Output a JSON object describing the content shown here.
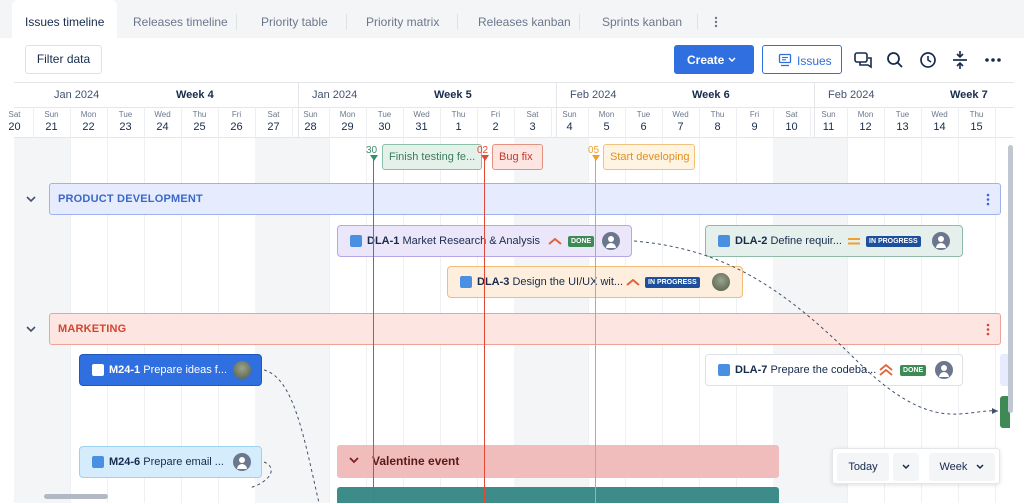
{
  "tabs": [
    {
      "label": "Issues timeline",
      "active": true
    },
    {
      "label": "Releases timeline",
      "active": false
    },
    {
      "label": "Priority table",
      "active": false
    },
    {
      "label": "Priority matrix",
      "active": false
    },
    {
      "label": "Releases kanban",
      "active": false
    },
    {
      "label": "Sprints kanban",
      "active": false
    }
  ],
  "toolbar": {
    "filter_label": "Filter data",
    "create_label": "Create",
    "issues_label": "Issues"
  },
  "header": {
    "months": [
      "Jan 2024",
      "Jan 2024",
      "Feb 2024",
      "Feb 2024"
    ],
    "weeks": [
      "Week 4",
      "Week 5",
      "Week 6",
      "Week 7"
    ],
    "days": [
      {
        "n": "Sat",
        "d": "20"
      },
      {
        "n": "Sun",
        "d": "21"
      },
      {
        "n": "Mon",
        "d": "22"
      },
      {
        "n": "Tue",
        "d": "23"
      },
      {
        "n": "Wed",
        "d": "24"
      },
      {
        "n": "Thu",
        "d": "25"
      },
      {
        "n": "Fri",
        "d": "26"
      },
      {
        "n": "Sat",
        "d": "27"
      },
      {
        "n": "Sun",
        "d": "28"
      },
      {
        "n": "Mon",
        "d": "29"
      },
      {
        "n": "Tue",
        "d": "30"
      },
      {
        "n": "Wed",
        "d": "31"
      },
      {
        "n": "Thu",
        "d": "1"
      },
      {
        "n": "Fri",
        "d": "2"
      },
      {
        "n": "Sat",
        "d": "3"
      },
      {
        "n": "Sun",
        "d": "4"
      },
      {
        "n": "Mon",
        "d": "5"
      },
      {
        "n": "Tue",
        "d": "6"
      },
      {
        "n": "Wed",
        "d": "7"
      },
      {
        "n": "Thu",
        "d": "8"
      },
      {
        "n": "Fri",
        "d": "9"
      },
      {
        "n": "Sat",
        "d": "10"
      },
      {
        "n": "Sun",
        "d": "11"
      },
      {
        "n": "Mon",
        "d": "12"
      },
      {
        "n": "Tue",
        "d": "13"
      },
      {
        "n": "Wed",
        "d": "14"
      },
      {
        "n": "Thu",
        "d": "15"
      }
    ]
  },
  "releases": [
    {
      "num": "30",
      "label": "Finish testing fe...",
      "color": "#3d8c6b"
    },
    {
      "num": "02",
      "label": "Bug fix",
      "color": "#de4a35"
    },
    {
      "num": "05",
      "label": "Start developing",
      "color": "#f0a030"
    }
  ],
  "groups": {
    "product": "PRODUCT DEVELOPMENT",
    "marketing": "MARKETING",
    "valentine": "Valentine event"
  },
  "cards": {
    "dla1": {
      "key": "DLA-1",
      "title": "Market Research & Analysis",
      "status": "DONE"
    },
    "dla2": {
      "key": "DLA-2",
      "title": "Define requir...",
      "status": "IN PROGRESS"
    },
    "dla3": {
      "key": "DLA-3",
      "title": "Design the UI/UX wit...",
      "status": "IN PROGRESS"
    },
    "m241": {
      "key": "M24-1",
      "title": "Prepare ideas f..."
    },
    "dla7": {
      "key": "DLA-7",
      "title": "Prepare the codeba...",
      "status": "DONE"
    },
    "m246": {
      "key": "M24-6",
      "title": "Prepare email ..."
    }
  },
  "footer": {
    "today_label": "Today",
    "scale_label": "Week"
  },
  "colors": {
    "accent": "#2f6fe0",
    "done": "#3d8a55",
    "in_progress": "#1d4f9c",
    "product_group": "#e6ecfe",
    "marketing_group": "#fde6e2"
  }
}
